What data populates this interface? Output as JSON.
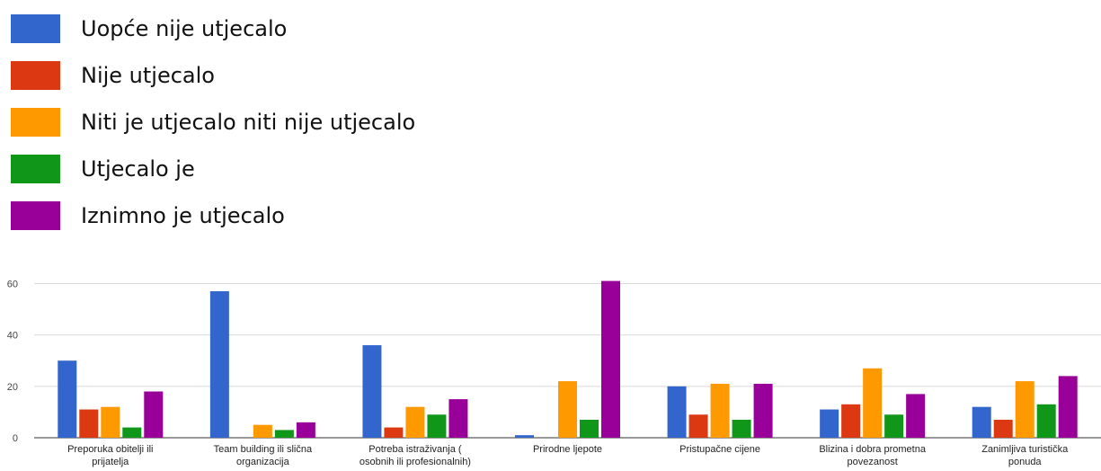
{
  "chart_data": {
    "type": "bar",
    "categories": [
      [
        "Preporuka obitelji ili",
        "prijatelja"
      ],
      [
        "Team building ili slična",
        "organizacija"
      ],
      [
        "Potreba istraživanja (",
        "osobnih ili profesionalnih)"
      ],
      [
        "Prirodne ljepote"
      ],
      [
        "Pristupačne cijene"
      ],
      [
        "Blizina i dobra prometna",
        "povezanost"
      ],
      [
        "Zanimljiva turistička",
        "ponuda"
      ]
    ],
    "series": [
      {
        "name": "Uopće nije utjecalo",
        "color": "#3366cc",
        "values": [
          30,
          57,
          36,
          1,
          20,
          11,
          12
        ]
      },
      {
        "name": "Nije utjecalo",
        "color": "#dc3912",
        "values": [
          11,
          0,
          4,
          0,
          9,
          13,
          7
        ]
      },
      {
        "name": "Niti je utjecalo niti nije utjecalo",
        "color": "#ff9900",
        "values": [
          12,
          5,
          12,
          22,
          21,
          27,
          22
        ]
      },
      {
        "name": "Utjecalo je",
        "color": "#109618",
        "values": [
          4,
          3,
          9,
          7,
          7,
          9,
          13
        ]
      },
      {
        "name": "Iznimno je utjecalo",
        "color": "#990099",
        "values": [
          18,
          6,
          15,
          61,
          21,
          17,
          24
        ]
      }
    ],
    "yticks": [
      0,
      20,
      40,
      60
    ],
    "ylim": [
      0,
      64
    ],
    "grid": true,
    "legend": "top-left"
  }
}
